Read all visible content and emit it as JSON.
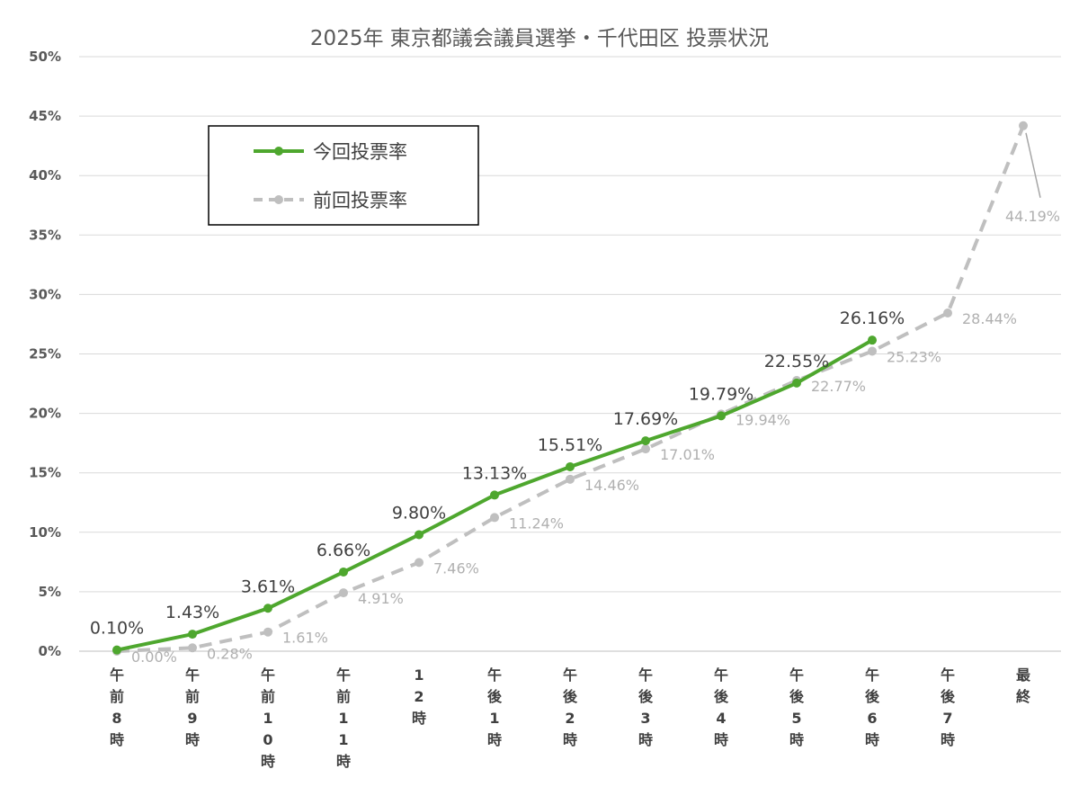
{
  "chart_data": {
    "type": "line",
    "title": "2025年 東京都議会議員選挙・千代田区 投票状況",
    "categories": [
      "午前8時",
      "午前9時",
      "午前10時",
      "午前11時",
      "12時",
      "午後1時",
      "午後2時",
      "午後3時",
      "午後4時",
      "午後5時",
      "午後6時",
      "午後7時",
      "最終"
    ],
    "ylim": [
      0,
      50
    ],
    "yticks": [
      "0%",
      "5%",
      "10%",
      "15%",
      "20%",
      "25%",
      "30%",
      "35%",
      "40%",
      "45%",
      "50%"
    ],
    "grid": true,
    "legend_position": "top-left",
    "series": [
      {
        "name": "今回投票率",
        "color": "#4ea72e",
        "style": "solid",
        "values": [
          0.1,
          1.43,
          3.61,
          6.66,
          9.8,
          13.13,
          15.51,
          17.69,
          19.79,
          22.55,
          26.16,
          null,
          null
        ],
        "labels": [
          "0.10%",
          "1.43%",
          "3.61%",
          "6.66%",
          "9.80%",
          "13.13%",
          "15.51%",
          "17.69%",
          "19.79%",
          "22.55%",
          "26.16%",
          null,
          null
        ]
      },
      {
        "name": "前回投票率",
        "color": "#bfbfbf",
        "style": "dashed",
        "values": [
          0.0,
          0.28,
          1.61,
          4.91,
          7.46,
          11.24,
          14.46,
          17.01,
          19.94,
          22.77,
          25.23,
          28.44,
          44.19
        ],
        "labels": [
          "0.00%",
          "0.28%",
          "1.61%",
          "4.91%",
          "7.46%",
          "11.24%",
          "14.46%",
          "17.01%",
          "19.94%",
          "22.77%",
          "25.23%",
          "28.44%",
          "44.19%"
        ]
      }
    ]
  }
}
